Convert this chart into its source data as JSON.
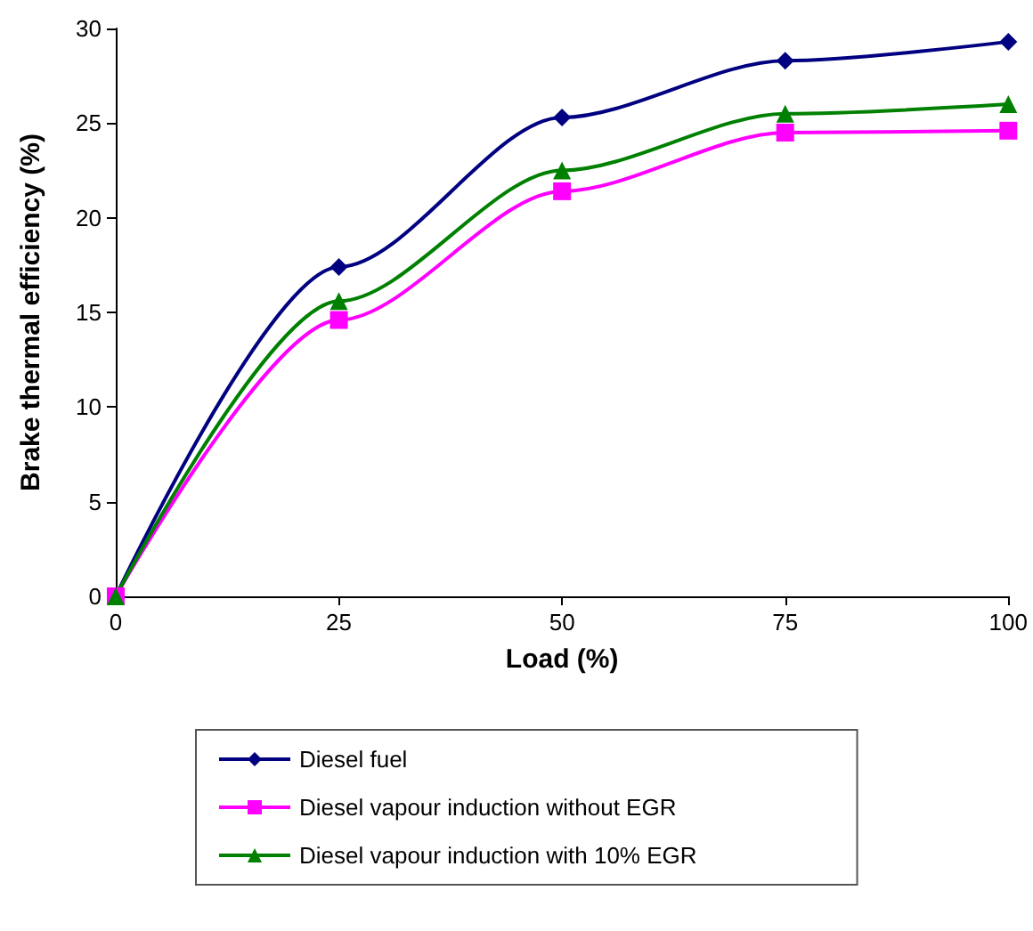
{
  "chart_data": {
    "type": "line",
    "xlabel": "Load (%)",
    "ylabel": "Brake thermal efficiency (%)",
    "x": [
      0,
      25,
      50,
      75,
      100
    ],
    "series": [
      {
        "name": "Diesel fuel",
        "color": "#000080",
        "marker": "diamond",
        "values": [
          0,
          17.4,
          25.3,
          28.3,
          29.3
        ]
      },
      {
        "name": "Diesel vapour induction without EGR",
        "color": "#ff00ff",
        "marker": "square",
        "values": [
          0,
          14.6,
          21.4,
          24.5,
          24.6
        ]
      },
      {
        "name": "Diesel vapour induction with 10% EGR",
        "color": "#008000",
        "marker": "triangle",
        "values": [
          0,
          15.6,
          22.5,
          25.5,
          26.0
        ]
      }
    ],
    "xlim": [
      0,
      100
    ],
    "xticks": [
      0,
      25,
      50,
      75,
      100
    ],
    "ylim": [
      0,
      30
    ],
    "yticks": [
      0,
      5,
      10,
      15,
      20,
      25,
      30
    ],
    "grid": false,
    "legend": "bottom"
  }
}
